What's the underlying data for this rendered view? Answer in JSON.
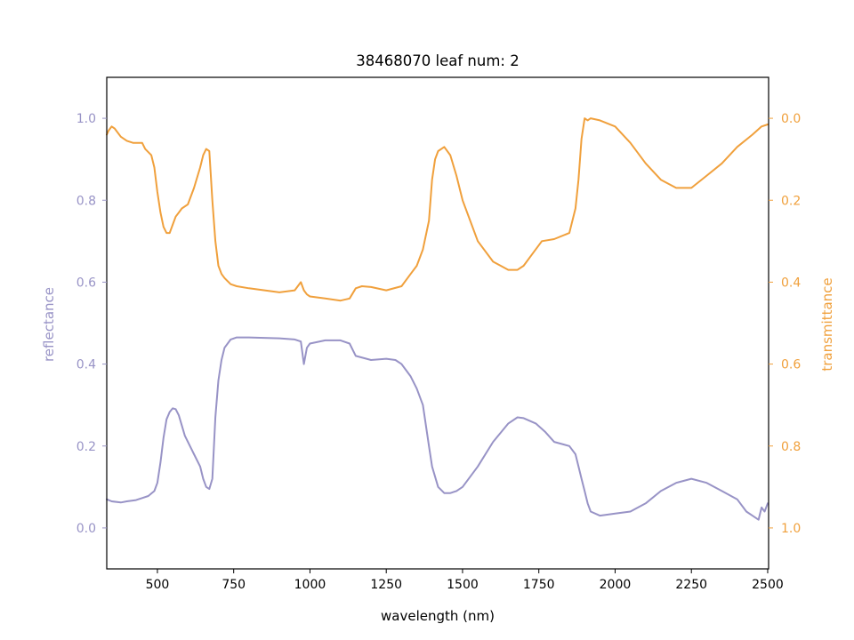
{
  "chart_data": {
    "type": "line",
    "title": "38468070 leaf num: 2",
    "xlabel": "wavelength (nm)",
    "ylabel_left": "reflectance",
    "ylabel_right": "transmittance",
    "xlim": [
      334,
      2503
    ],
    "ylim_left": [
      -0.1,
      1.1
    ],
    "ylim_right_inverted": [
      1.1,
      -0.1
    ],
    "x_ticks": [
      "500",
      "750",
      "1000",
      "1250",
      "1500",
      "1750",
      "2000",
      "2250",
      "2500"
    ],
    "y_left_ticks": [
      "0.0",
      "0.2",
      "0.4",
      "0.6",
      "0.8",
      "1.0"
    ],
    "y_right_ticks": [
      "0.0",
      "0.2",
      "0.4",
      "0.6",
      "0.8",
      "1.0"
    ],
    "grid": false,
    "colors": {
      "reflectance": "#9893c6",
      "transmittance": "#f0a03c"
    },
    "series": [
      {
        "name": "reflectance",
        "axis": "left",
        "x": [
          334,
          350,
          380,
          400,
          430,
          450,
          470,
          490,
          500,
          510,
          520,
          530,
          540,
          550,
          560,
          570,
          580,
          590,
          600,
          620,
          640,
          650,
          660,
          670,
          680,
          690,
          700,
          710,
          720,
          740,
          760,
          800,
          900,
          950,
          970,
          980,
          990,
          1000,
          1050,
          1100,
          1130,
          1150,
          1200,
          1250,
          1280,
          1300,
          1330,
          1350,
          1370,
          1390,
          1400,
          1420,
          1440,
          1460,
          1480,
          1500,
          1550,
          1600,
          1650,
          1680,
          1700,
          1740,
          1770,
          1800,
          1850,
          1870,
          1880,
          1890,
          1900,
          1910,
          1920,
          1950,
          2000,
          2050,
          2100,
          2150,
          2200,
          2250,
          2300,
          2350,
          2400,
          2430,
          2450,
          2470,
          2480,
          2490,
          2500
        ],
        "y": [
          0.07,
          0.065,
          0.062,
          0.065,
          0.068,
          0.073,
          0.078,
          0.09,
          0.11,
          0.16,
          0.22,
          0.265,
          0.283,
          0.292,
          0.29,
          0.275,
          0.25,
          0.225,
          0.21,
          0.18,
          0.15,
          0.12,
          0.1,
          0.095,
          0.12,
          0.27,
          0.36,
          0.41,
          0.44,
          0.46,
          0.465,
          0.465,
          0.463,
          0.46,
          0.455,
          0.4,
          0.44,
          0.45,
          0.458,
          0.458,
          0.45,
          0.42,
          0.41,
          0.413,
          0.41,
          0.4,
          0.37,
          0.34,
          0.3,
          0.2,
          0.15,
          0.1,
          0.085,
          0.085,
          0.09,
          0.1,
          0.15,
          0.21,
          0.255,
          0.27,
          0.268,
          0.255,
          0.235,
          0.21,
          0.2,
          0.18,
          0.15,
          0.12,
          0.09,
          0.06,
          0.04,
          0.03,
          0.035,
          0.04,
          0.06,
          0.09,
          0.11,
          0.12,
          0.11,
          0.09,
          0.07,
          0.04,
          0.03,
          0.02,
          0.05,
          0.04,
          0.06
        ]
      },
      {
        "name": "transmittance",
        "axis": "right",
        "x": [
          334,
          340,
          350,
          360,
          380,
          400,
          420,
          450,
          460,
          480,
          490,
          500,
          510,
          520,
          530,
          540,
          550,
          560,
          570,
          580,
          600,
          620,
          640,
          650,
          660,
          670,
          680,
          690,
          700,
          710,
          720,
          740,
          760,
          800,
          900,
          950,
          970,
          980,
          990,
          1000,
          1050,
          1100,
          1130,
          1150,
          1170,
          1200,
          1250,
          1300,
          1330,
          1350,
          1370,
          1390,
          1400,
          1410,
          1420,
          1440,
          1460,
          1480,
          1500,
          1550,
          1600,
          1650,
          1680,
          1700,
          1730,
          1760,
          1800,
          1850,
          1870,
          1880,
          1890,
          1900,
          1910,
          1920,
          1950,
          2000,
          2050,
          2100,
          2150,
          2200,
          2250,
          2300,
          2350,
          2400,
          2450,
          2480,
          2500
        ],
        "y": [
          0.04,
          0.03,
          0.02,
          0.025,
          0.045,
          0.055,
          0.06,
          0.06,
          0.075,
          0.09,
          0.12,
          0.18,
          0.23,
          0.265,
          0.28,
          0.28,
          0.26,
          0.24,
          0.23,
          0.22,
          0.21,
          0.17,
          0.12,
          0.09,
          0.075,
          0.08,
          0.2,
          0.3,
          0.36,
          0.38,
          0.39,
          0.405,
          0.41,
          0.415,
          0.425,
          0.42,
          0.4,
          0.42,
          0.43,
          0.435,
          0.44,
          0.445,
          0.44,
          0.415,
          0.41,
          0.412,
          0.42,
          0.41,
          0.38,
          0.36,
          0.32,
          0.25,
          0.15,
          0.1,
          0.08,
          0.07,
          0.09,
          0.14,
          0.2,
          0.3,
          0.35,
          0.37,
          0.37,
          0.36,
          0.33,
          0.3,
          0.295,
          0.28,
          0.22,
          0.15,
          0.05,
          0.0,
          0.005,
          0.0,
          0.005,
          0.02,
          0.06,
          0.11,
          0.15,
          0.17,
          0.17,
          0.14,
          0.11,
          0.07,
          0.04,
          0.02,
          0.015
        ]
      }
    ]
  }
}
